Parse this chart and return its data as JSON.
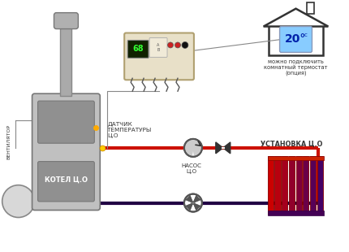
{
  "bg_color": "#ffffff",
  "boiler_label": "КОТЕЛ Ц.О",
  "ventilator_label": "ВЕНТИЛЯТОР",
  "sensor_label": "ДАТЧИК\nТЕМПЕРАТУРЫ\nЦ.О",
  "pump_label": "НАСОС\nЦ.О",
  "installation_label": "УСТАНОВКА Ц.О",
  "thermostat_label": "можно подключить\nкомнатный термостат\n(опция)",
  "pipe_hot": "#cc1100",
  "pipe_cold": "#220044",
  "pipe_lw": 3.0,
  "boiler_body": "#c0c0c0",
  "boiler_panel": "#909090",
  "boiler_edge": "#777777",
  "chimney_color": "#aaaaaa",
  "ctrl_bg": "#e8e0c8",
  "ctrl_edge": "#b0a070",
  "ctrl_display": "#1a3322",
  "ctrl_btn1": "#cc2222",
  "ctrl_btn2": "#cc2222",
  "ctrl_btn3": "#222222",
  "house_edge": "#333333",
  "therm_bg": "#88ccff",
  "therm_text": "#0022aa",
  "text_color": "#333333"
}
